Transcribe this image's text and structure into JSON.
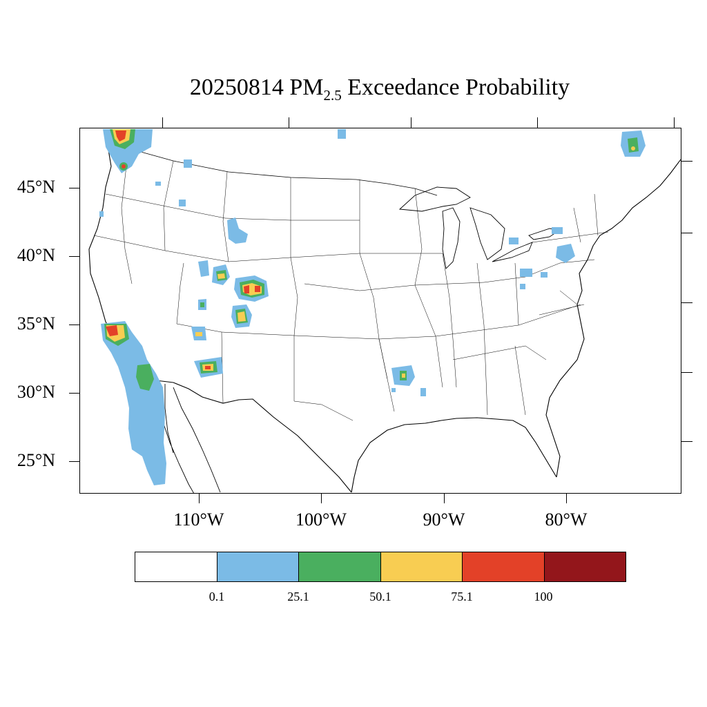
{
  "title": {
    "date": "20250814",
    "pm": "PM",
    "sub": "2.5",
    "rest": "Exceedance Probability"
  },
  "axes": {
    "lat_labels": [
      "45°N",
      "40°N",
      "35°N",
      "30°N",
      "25°N"
    ],
    "lon_labels": [
      "110°W",
      "100°W",
      "90°W",
      "80°W"
    ]
  },
  "colorbar": {
    "colors": [
      "#ffffff",
      "#7bbbe6",
      "#4aaf5f",
      "#f8cd52",
      "#e34128",
      "#93161b"
    ],
    "labels": [
      "0.1",
      "25.1",
      "50.1",
      "75.1",
      "100"
    ]
  },
  "map_data": {
    "region": "Contiguous United States",
    "plumes": [
      {
        "name": "Pacific Northwest / Washington",
        "max_level": "75.1-100"
      },
      {
        "name": "Southern California coast",
        "max_level": "75.1-100"
      },
      {
        "name": "Baja California",
        "max_level": "25.1-50.1"
      },
      {
        "name": "Central Colorado",
        "max_level": "75.1-100"
      },
      {
        "name": "Southern Colorado",
        "max_level": "50.1-75.1"
      },
      {
        "name": "Northwest Colorado",
        "max_level": "50.1-75.1"
      },
      {
        "name": "Southern Arizona",
        "max_level": "75.1-100"
      },
      {
        "name": "Central Utah",
        "max_level": "50.1-75.1"
      },
      {
        "name": "Arkansas / Louisiana",
        "max_level": "50.1-75.1"
      },
      {
        "name": "Southern Quebec",
        "max_level": "50.1-75.1"
      },
      {
        "name": "Pennsylvania",
        "max_level": "0.1-25.1"
      },
      {
        "name": "Ohio",
        "max_level": "0.1-25.1"
      }
    ]
  }
}
